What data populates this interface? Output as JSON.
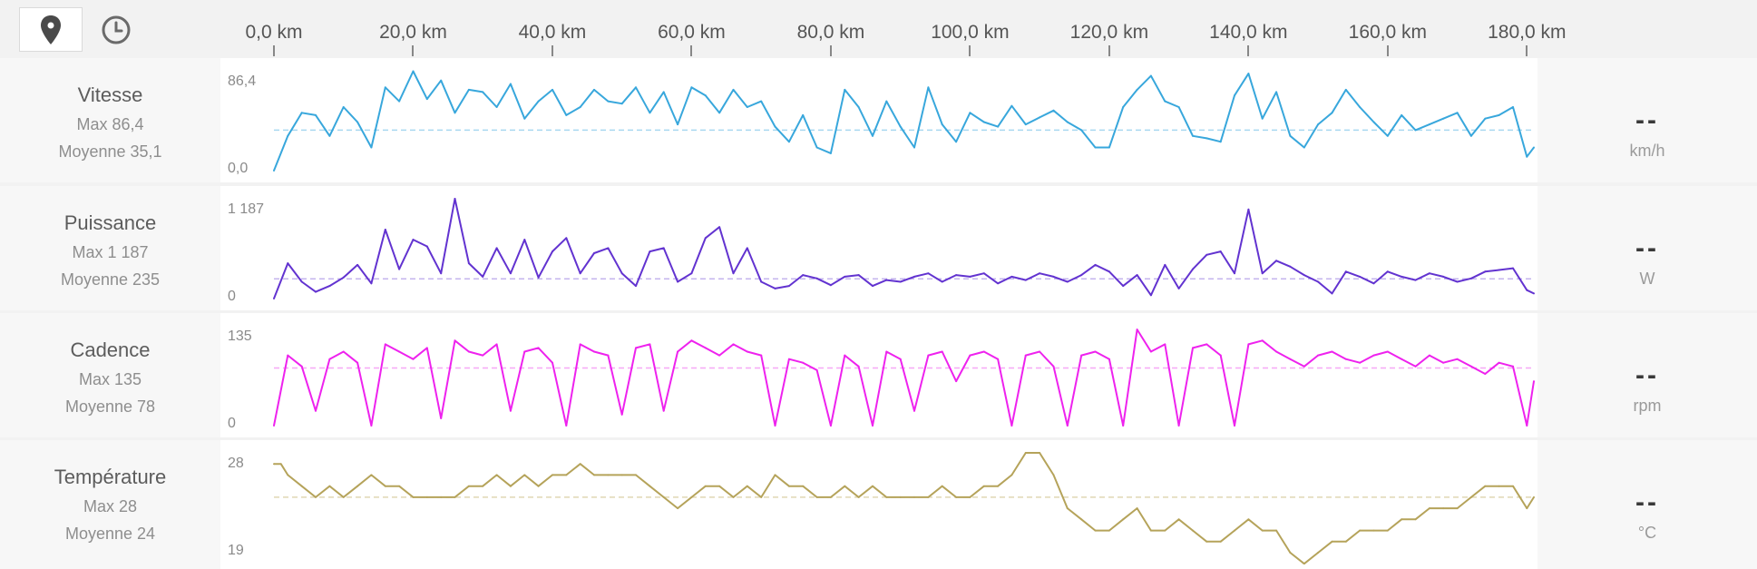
{
  "toolbar": {
    "buttons": [
      {
        "name": "map-pin-icon",
        "active": true
      },
      {
        "name": "clock-icon",
        "active": false
      }
    ]
  },
  "x_axis": {
    "ticks": [
      "0,0 km",
      "20,0 km",
      "40,0 km",
      "60,0 km",
      "80,0 km",
      "100,0 km",
      "120,0 km",
      "140,0 km",
      "160,0 km",
      "180,0 km"
    ],
    "tick_values": [
      0,
      20,
      40,
      60,
      80,
      100,
      120,
      140,
      160,
      180
    ],
    "range_km": [
      0,
      181
    ]
  },
  "rows": [
    {
      "title": "Vitesse",
      "max_text": "Max 86,4",
      "avg_text": "Moyenne 35,1",
      "ymax_label": "86,4",
      "ymin_label": "0,0",
      "current": "--",
      "unit": "km/h",
      "color": "#38a7dc",
      "avg_color": "#a8d8f0"
    },
    {
      "title": "Puissance",
      "max_text": "Max 1 187",
      "avg_text": "Moyenne 235",
      "ymax_label": "1 187",
      "ymin_label": "0",
      "current": "--",
      "unit": "W",
      "color": "#6233d0",
      "avg_color": "#c4b4ee"
    },
    {
      "title": "Cadence",
      "max_text": "Max 135",
      "avg_text": "Moyenne 78",
      "ymax_label": "135",
      "ymin_label": "0",
      "current": "--",
      "unit": "rpm",
      "color": "#ee22ee",
      "avg_color": "#f6a8f6"
    },
    {
      "title": "Température",
      "max_text": "Max 28",
      "avg_text": "Moyenne 24",
      "ymax_label": "28",
      "ymin_label": "19",
      "current": "--",
      "unit": "°C",
      "color": "#b5a35a",
      "avg_color": "#e0d8b4"
    }
  ],
  "chart_data": [
    {
      "type": "line",
      "ylim": [
        0,
        86.4
      ],
      "average": 35.1,
      "max": 86.4,
      "x": [
        0,
        2,
        4,
        6,
        8,
        10,
        12,
        14,
        16,
        18,
        20,
        22,
        24,
        26,
        28,
        30,
        32,
        34,
        36,
        38,
        40,
        42,
        44,
        46,
        48,
        50,
        52,
        54,
        56,
        58,
        60,
        62,
        64,
        66,
        68,
        70,
        72,
        74,
        76,
        78,
        80,
        82,
        84,
        86,
        88,
        90,
        92,
        94,
        96,
        98,
        100,
        102,
        104,
        106,
        108,
        110,
        112,
        114,
        116,
        118,
        120,
        122,
        124,
        126,
        128,
        130,
        132,
        134,
        136,
        138,
        140,
        142,
        144,
        146,
        148,
        150,
        152,
        154,
        156,
        158,
        160,
        162,
        164,
        166,
        168,
        170,
        172,
        174,
        176,
        178,
        180,
        181
      ],
      "values": [
        0,
        30,
        50,
        48,
        30,
        55,
        42,
        20,
        72,
        60,
        86,
        62,
        78,
        50,
        70,
        68,
        55,
        75,
        45,
        60,
        70,
        48,
        55,
        70,
        60,
        58,
        72,
        50,
        68,
        40,
        72,
        65,
        50,
        70,
        55,
        60,
        38,
        25,
        48,
        20,
        15,
        70,
        55,
        30,
        60,
        38,
        20,
        72,
        40,
        25,
        50,
        42,
        38,
        56,
        40,
        46,
        52,
        42,
        35,
        20,
        20,
        55,
        70,
        82,
        60,
        55,
        30,
        28,
        25,
        65,
        84,
        45,
        68,
        30,
        20,
        40,
        50,
        70,
        55,
        42,
        30,
        48,
        35,
        40,
        45,
        50,
        30,
        45,
        48,
        55,
        12,
        20
      ],
      "title": "Vitesse"
    },
    {
      "type": "line",
      "ylim": [
        0,
        1187
      ],
      "average": 235,
      "max": 1187,
      "x": [
        0,
        2,
        4,
        6,
        8,
        10,
        12,
        14,
        16,
        18,
        20,
        22,
        24,
        26,
        28,
        30,
        32,
        34,
        36,
        38,
        40,
        42,
        44,
        46,
        48,
        50,
        52,
        54,
        56,
        58,
        60,
        62,
        64,
        66,
        68,
        70,
        72,
        74,
        76,
        78,
        80,
        82,
        84,
        86,
        88,
        90,
        92,
        94,
        96,
        98,
        100,
        102,
        104,
        106,
        108,
        110,
        112,
        114,
        116,
        118,
        120,
        122,
        124,
        126,
        128,
        130,
        132,
        134,
        136,
        138,
        140,
        142,
        144,
        146,
        148,
        150,
        152,
        154,
        156,
        158,
        160,
        162,
        164,
        166,
        168,
        170,
        172,
        174,
        176,
        178,
        180,
        181
      ],
      "values": [
        0,
        420,
        200,
        80,
        150,
        250,
        400,
        180,
        820,
        350,
        700,
        620,
        300,
        1187,
        420,
        260,
        600,
        300,
        700,
        250,
        560,
        720,
        300,
        540,
        600,
        300,
        150,
        560,
        600,
        200,
        300,
        720,
        850,
        300,
        600,
        200,
        120,
        150,
        280,
        240,
        160,
        260,
        280,
        150,
        220,
        200,
        260,
        300,
        200,
        280,
        260,
        300,
        180,
        260,
        220,
        300,
        260,
        200,
        280,
        400,
        320,
        150,
        280,
        40,
        400,
        120,
        350,
        520,
        560,
        300,
        1060,
        300,
        450,
        380,
        280,
        200,
        60,
        320,
        260,
        180,
        320,
        260,
        220,
        300,
        260,
        200,
        240,
        320,
        340,
        360,
        100,
        60
      ],
      "title": "Puissance"
    },
    {
      "type": "line",
      "ylim": [
        0,
        135
      ],
      "average": 78,
      "max": 135,
      "x": [
        0,
        2,
        4,
        6,
        8,
        10,
        12,
        14,
        16,
        18,
        20,
        22,
        24,
        26,
        28,
        30,
        32,
        34,
        36,
        38,
        40,
        42,
        44,
        46,
        48,
        50,
        52,
        54,
        56,
        58,
        60,
        62,
        64,
        66,
        68,
        70,
        72,
        74,
        76,
        78,
        80,
        82,
        84,
        86,
        88,
        90,
        92,
        94,
        96,
        98,
        100,
        102,
        104,
        106,
        108,
        110,
        112,
        114,
        116,
        118,
        120,
        122,
        124,
        126,
        128,
        130,
        132,
        134,
        136,
        138,
        140,
        142,
        144,
        146,
        148,
        150,
        152,
        154,
        156,
        158,
        160,
        162,
        164,
        166,
        168,
        170,
        172,
        174,
        176,
        178,
        180,
        181
      ],
      "values": [
        0,
        95,
        80,
        20,
        90,
        100,
        85,
        0,
        110,
        100,
        90,
        105,
        10,
        115,
        100,
        95,
        110,
        20,
        100,
        105,
        85,
        0,
        110,
        100,
        95,
        15,
        105,
        110,
        20,
        100,
        115,
        105,
        95,
        110,
        100,
        95,
        0,
        90,
        85,
        75,
        0,
        95,
        80,
        0,
        100,
        90,
        20,
        95,
        100,
        60,
        95,
        100,
        90,
        0,
        95,
        100,
        80,
        0,
        95,
        100,
        90,
        0,
        130,
        100,
        110,
        0,
        105,
        110,
        95,
        0,
        110,
        115,
        100,
        90,
        80,
        95,
        100,
        90,
        85,
        95,
        100,
        90,
        80,
        95,
        85,
        90,
        80,
        70,
        85,
        80,
        0,
        60
      ],
      "title": "Cadence"
    },
    {
      "type": "line",
      "ylim": [
        19,
        28
      ],
      "average": 24,
      "max": 28,
      "x": [
        0,
        1,
        2,
        4,
        6,
        8,
        10,
        12,
        14,
        16,
        18,
        20,
        22,
        24,
        26,
        28,
        30,
        32,
        34,
        36,
        38,
        40,
        42,
        44,
        46,
        48,
        50,
        52,
        54,
        56,
        58,
        60,
        62,
        64,
        66,
        68,
        70,
        72,
        74,
        76,
        78,
        80,
        82,
        84,
        86,
        88,
        90,
        92,
        94,
        96,
        98,
        100,
        102,
        104,
        106,
        108,
        110,
        112,
        114,
        116,
        118,
        120,
        122,
        124,
        126,
        128,
        130,
        132,
        134,
        136,
        138,
        140,
        142,
        144,
        146,
        148,
        150,
        152,
        154,
        156,
        158,
        160,
        162,
        164,
        166,
        168,
        170,
        172,
        174,
        176,
        178,
        180,
        181
      ],
      "values": [
        27,
        27,
        26,
        25,
        24,
        25,
        24,
        25,
        26,
        25,
        25,
        24,
        24,
        24,
        24,
        25,
        25,
        26,
        25,
        26,
        25,
        26,
        26,
        27,
        26,
        26,
        26,
        26,
        25,
        24,
        23,
        24,
        25,
        25,
        24,
        25,
        24,
        26,
        25,
        25,
        24,
        24,
        25,
        24,
        25,
        24,
        24,
        24,
        24,
        25,
        24,
        24,
        25,
        25,
        26,
        28,
        28,
        26,
        23,
        22,
        21,
        21,
        22,
        23,
        21,
        21,
        22,
        21,
        20,
        20,
        21,
        22,
        21,
        21,
        19,
        18,
        19,
        20,
        20,
        21,
        21,
        21,
        22,
        22,
        23,
        23,
        23,
        24,
        25,
        25,
        25,
        23,
        24
      ],
      "title": "Température"
    }
  ]
}
